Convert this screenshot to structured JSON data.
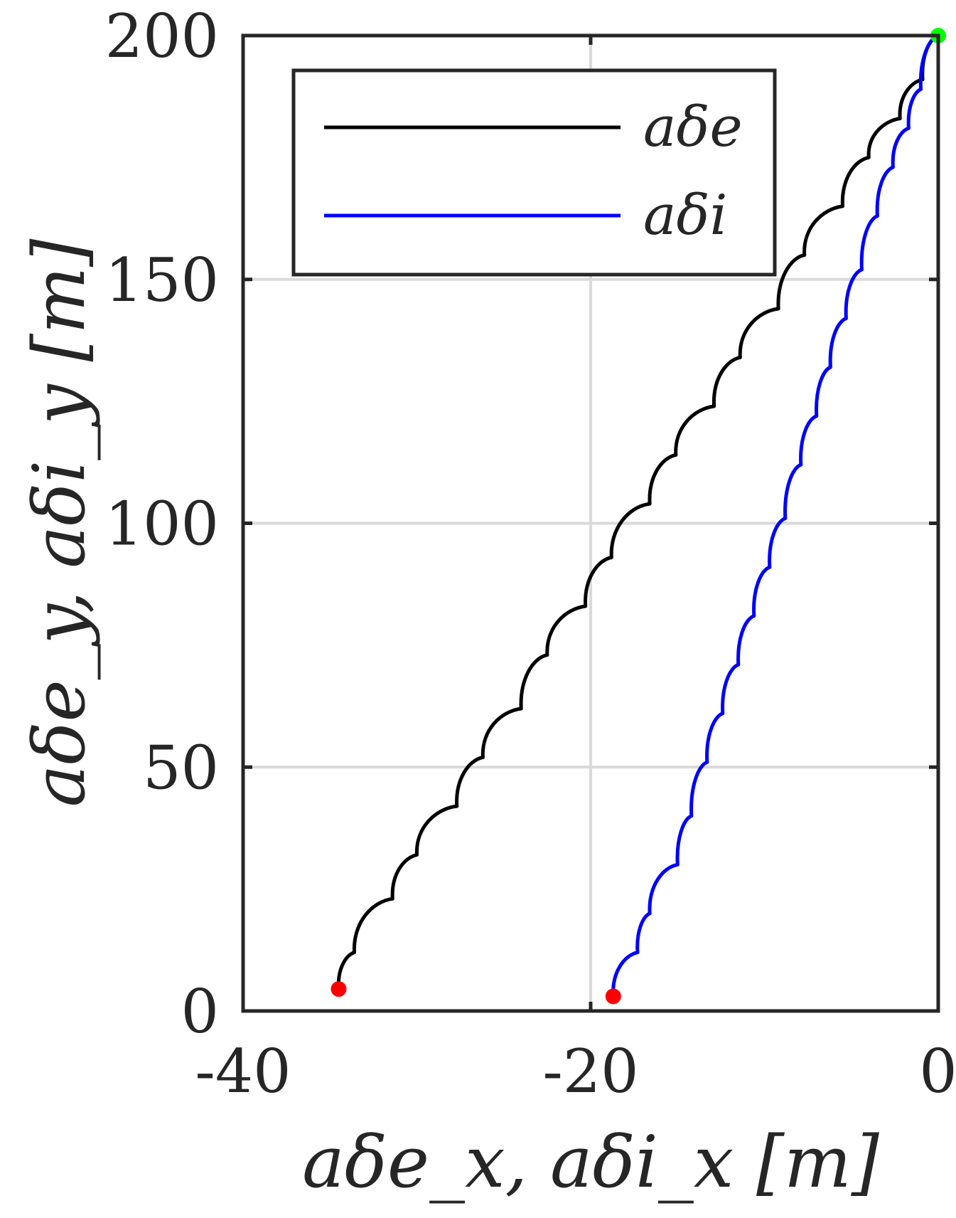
{
  "chart_data": {
    "type": "line",
    "xlabel": "aδe_x, aδi_x [m]",
    "ylabel": "aδe_y, aδi_y [m]",
    "xlim": [
      -40,
      0
    ],
    "ylim": [
      0,
      200
    ],
    "xticks": [
      -40,
      -20,
      0
    ],
    "yticks": [
      0,
      50,
      100,
      150,
      200
    ],
    "xtick_labels": [
      "-40",
      "-20",
      "0"
    ],
    "ytick_labels": [
      "0",
      "50",
      "100",
      "150",
      "200"
    ],
    "grid": true,
    "legend_position": "top-left",
    "colors": {
      "axis": "#262626",
      "grid": "#d9d9d9",
      "series_ade": "#000000",
      "series_adi": "#0000ff",
      "marker_start": "#ff0000",
      "marker_end": "#00ff00"
    },
    "series": [
      {
        "name": "aδe",
        "color": "#000000",
        "start": [
          -34.5,
          4.5
        ],
        "end": [
          0,
          200
        ],
        "cusps": [
          [
            -34.5,
            4.5
          ],
          [
            -33.6,
            12
          ],
          [
            -31.4,
            23
          ],
          [
            -30.0,
            32
          ],
          [
            -27.7,
            42
          ],
          [
            -26.2,
            52
          ],
          [
            -24.0,
            62
          ],
          [
            -22.5,
            73
          ],
          [
            -20.3,
            83
          ],
          [
            -18.8,
            93
          ],
          [
            -16.6,
            104
          ],
          [
            -15.1,
            114
          ],
          [
            -12.9,
            124
          ],
          [
            -11.4,
            134
          ],
          [
            -9.2,
            144
          ],
          [
            -7.7,
            155
          ],
          [
            -5.5,
            165
          ],
          [
            -4.0,
            175
          ],
          [
            -2.2,
            183
          ],
          [
            -0.9,
            191
          ],
          [
            0,
            200
          ]
        ]
      },
      {
        "name": "aδi",
        "color": "#0000ff",
        "start": [
          -18.7,
          3
        ],
        "end": [
          0,
          200
        ],
        "cusps": [
          [
            -18.7,
            3
          ],
          [
            -17.3,
            12
          ],
          [
            -16.6,
            20
          ],
          [
            -15.0,
            30
          ],
          [
            -14.2,
            40
          ],
          [
            -13.3,
            51
          ],
          [
            -12.4,
            61
          ],
          [
            -11.5,
            71
          ],
          [
            -10.6,
            81
          ],
          [
            -9.7,
            91
          ],
          [
            -8.8,
            101
          ],
          [
            -7.9,
            112
          ],
          [
            -7.0,
            122
          ],
          [
            -6.2,
            132
          ],
          [
            -5.3,
            142
          ],
          [
            -4.4,
            152
          ],
          [
            -3.5,
            163
          ],
          [
            -2.6,
            173
          ],
          [
            -1.7,
            181
          ],
          [
            -1.0,
            189
          ],
          [
            0,
            200
          ]
        ]
      }
    ],
    "markers": [
      {
        "x": -34.5,
        "y": 4.5,
        "color": "#ff0000"
      },
      {
        "x": -18.7,
        "y": 3,
        "color": "#ff0000"
      },
      {
        "x": 0,
        "y": 200,
        "color": "#00ff00"
      }
    ]
  }
}
